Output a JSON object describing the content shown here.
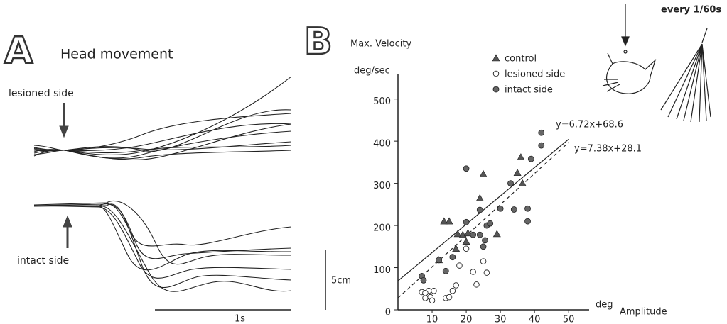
{
  "panel_a": {
    "label": "A",
    "title": "Head movement",
    "lesioned_label": "lesioned side",
    "intact_label": "intact side",
    "scale_y_label": "5cm",
    "scale_x_label": "1s"
  },
  "chart_data": {
    "type": "scatter",
    "panel_label": "B",
    "y_label": "Max. Velocity",
    "y_unit": "deg/sec",
    "x_unit": "deg",
    "x_label": "Amplitude",
    "illustration_label": "every 1/60s",
    "xlim": [
      0,
      56
    ],
    "ylim": [
      0,
      560
    ],
    "xticks": [
      10,
      20,
      30,
      40,
      50
    ],
    "yticks": [
      0,
      100,
      200,
      300,
      400,
      500
    ],
    "series": [
      {
        "name": "control",
        "color": "#555555",
        "marker": "triangle",
        "x": [
          13.5,
          15,
          12,
          17,
          17.5,
          19,
          20.5,
          20,
          25,
          24,
          29,
          36,
          35,
          36.5
        ],
        "y": [
          210,
          210,
          118,
          145,
          180,
          178,
          182,
          162,
          322,
          265,
          180,
          362,
          325,
          300
        ]
      },
      {
        "name": "lesioned side",
        "color": "#222222",
        "marker": "open-circle",
        "x": [
          7,
          8,
          9,
          9.5,
          10,
          10.5,
          14,
          15,
          16,
          17,
          18,
          20,
          22,
          23,
          25,
          26,
          8
        ],
        "y": [
          42,
          28,
          45,
          30,
          22,
          45,
          28,
          30,
          45,
          58,
          105,
          145,
          90,
          60,
          115,
          88,
          40
        ]
      },
      {
        "name": "intact side",
        "color": "#666666",
        "marker": "filled-circle",
        "x": [
          7,
          7.5,
          12,
          14,
          16,
          20,
          20,
          22,
          24,
          25,
          25.5,
          26,
          27,
          30,
          33,
          34,
          38,
          38,
          39,
          42,
          42,
          24
        ],
        "y": [
          80,
          70,
          118,
          92,
          125,
          335,
          208,
          178,
          178,
          150,
          165,
          200,
          205,
          240,
          300,
          238,
          240,
          210,
          358,
          390,
          420,
          237
        ]
      }
    ],
    "fits": [
      {
        "label": "y=6.72x+68.6",
        "slope": 6.72,
        "intercept": 68.6,
        "style": "solid"
      },
      {
        "label": "y=7.38x+28.1",
        "slope": 7.38,
        "intercept": 28.1,
        "style": "dashed"
      }
    ]
  }
}
